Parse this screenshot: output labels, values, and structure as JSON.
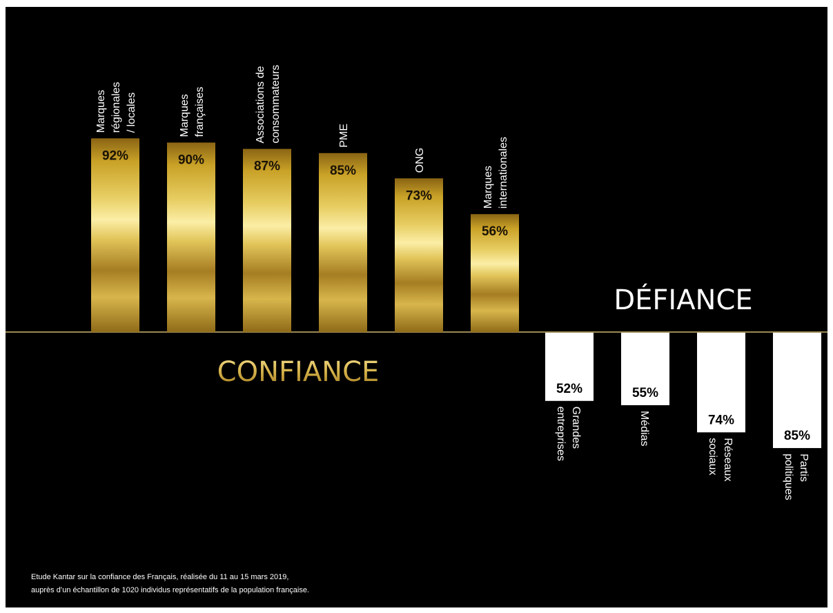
{
  "chart_data": {
    "type": "bar",
    "confiance": {
      "label": "CONFIANCE",
      "categories": [
        [
          "Marques",
          "régionales",
          "/ locales"
        ],
        [
          "Marques",
          "françaises"
        ],
        [
          "Associations de",
          "consommateurs"
        ],
        [
          "PME"
        ],
        [
          "ONG"
        ],
        [
          "Marques",
          "internationales"
        ]
      ],
      "values": [
        92,
        90,
        87,
        85,
        73,
        56
      ],
      "value_labels": [
        "92%",
        "90%",
        "87%",
        "85%",
        "73%",
        "56%"
      ],
      "color": "#c9a227"
    },
    "defiance": {
      "label": "DÉFIANCE",
      "categories": [
        [
          "Grandes",
          "entreprises"
        ],
        [
          "Médias"
        ],
        [
          "Réseaux",
          "sociaux"
        ],
        [
          "Partis",
          "politiques"
        ]
      ],
      "values": [
        52,
        55,
        74,
        85
      ],
      "value_labels": [
        "52%",
        "55%",
        "74%",
        "85%"
      ],
      "color": "#ffffff"
    }
  },
  "footnote": {
    "line1": "Etude Kantar sur la confiance des Français, réalisée du 11 au 15 mars 2019,",
    "line2": "auprès d’un échantillon de 1020 individus représentatifs de la population française."
  }
}
